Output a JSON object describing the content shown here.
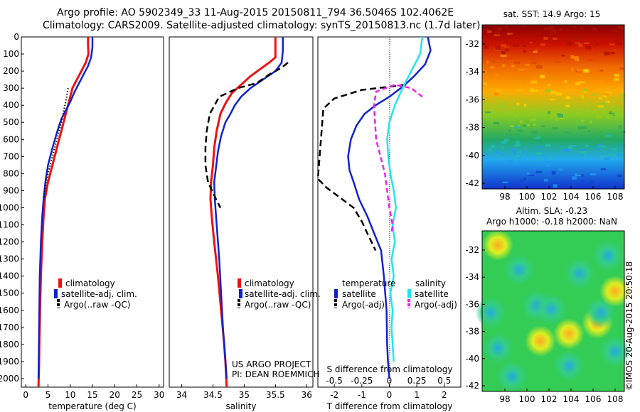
{
  "header": {
    "line1": "Argo profile: AO 5902349_33 11-Aug-2015 20150811_794 36.5046S 102.4062E",
    "line2": "Climatology: CARS2009. Satellite-adjusted climatology: synTS_20150813.nc (1.7d later)"
  },
  "colors": {
    "climatology": "#ee1111",
    "satellite": "#1122cc",
    "argo": "#000000",
    "satellite_salinity": "#22e5ee",
    "argo_adj_salinity": "#ee22ee"
  },
  "project": {
    "line1": "US ARGO PROJECT",
    "line2": "PI: DEAN ROEMMICH"
  },
  "imos_label": "©IMOS 20-Aug-2015 20:50:18",
  "maps": {
    "sst": {
      "title": "sat. SST: 14.9 Argo: 15",
      "colormap": "jet",
      "xticks": [
        "98",
        "100",
        "102",
        "104",
        "106",
        "108"
      ],
      "yticks": [
        "-32",
        "-34",
        "-36",
        "-38",
        "-40",
        "-42"
      ]
    },
    "sla": {
      "title1": "Altim. SLA: -0.23",
      "title2": "Argo h1000: -0.18 h2000: NaN",
      "colormap": "jet",
      "xticks": [
        "98",
        "100",
        "102",
        "104",
        "106",
        "108"
      ],
      "yticks": [
        "-32",
        "-34",
        "-36",
        "-38",
        "-40",
        "-42"
      ]
    }
  },
  "chart_data": [
    {
      "type": "line",
      "xlabel": "temperature (deg C)",
      "ylabel": "",
      "xlim": [
        -1,
        31
      ],
      "ylim": [
        2050,
        0
      ],
      "xticks": [
        "0",
        "5",
        "10",
        "15",
        "20",
        "25",
        "30"
      ],
      "yticks": [
        "0",
        "100",
        "200",
        "300",
        "400",
        "500",
        "600",
        "700",
        "800",
        "900",
        "1000",
        "1100",
        "1200",
        "1300",
        "1400",
        "1500",
        "1600",
        "1700",
        "1800",
        "1900",
        "2000"
      ],
      "legend": [
        "climatology",
        "satellite-adj. clim.",
        "Argo(..raw -QC)"
      ],
      "legend_position": "lower-center",
      "series": [
        {
          "name": "climatology",
          "style": "red",
          "x": [
            14,
            14,
            14.1,
            13.5,
            12.5,
            11.5,
            10.5,
            10,
            9.5,
            9,
            8,
            7,
            6,
            5,
            4.3,
            4,
            3.7,
            3.4,
            3.2,
            3.05,
            3,
            2.9,
            2.85
          ],
          "y": [
            0,
            50,
            100,
            150,
            200,
            250,
            300,
            350,
            400,
            450,
            550,
            650,
            750,
            850,
            950,
            1050,
            1200,
            1400,
            1600,
            1800,
            1900,
            2000,
            2050
          ]
        },
        {
          "name": "satellite-adj. clim.",
          "style": "blue",
          "x": [
            15,
            15,
            14.7,
            14,
            13,
            12,
            11,
            10,
            9,
            8,
            7,
            6,
            5,
            4.4,
            4,
            3.7,
            3.4,
            3.15,
            3.05,
            2.95,
            2.85
          ],
          "y": [
            0,
            60,
            120,
            170,
            220,
            270,
            320,
            380,
            430,
            480,
            560,
            650,
            750,
            850,
            950,
            1050,
            1200,
            1400,
            1600,
            1800,
            2000
          ]
        },
        {
          "name": "Argo(..raw -QC)",
          "style": "black-dotted",
          "x": [
            9.5,
            9.2,
            8.8,
            8.4,
            8,
            7.5,
            7,
            6.5,
            6,
            5.5,
            5,
            4.6,
            4.3,
            4
          ],
          "y": [
            300,
            350,
            400,
            450,
            500,
            550,
            600,
            650,
            700,
            750,
            800,
            850,
            900,
            950
          ]
        }
      ]
    },
    {
      "type": "line",
      "xlabel": "salinity",
      "ylabel": "",
      "xlim": [
        33.8,
        36.1
      ],
      "ylim": [
        2050,
        0
      ],
      "xticks": [
        "34",
        "34.5",
        "35",
        "35.5",
        "36"
      ],
      "legend": [
        "climatology",
        "satellite-adj. clim.",
        "Argo(..raw -QC)"
      ],
      "legend_position": "lower-center",
      "series": [
        {
          "name": "climatology",
          "style": "red",
          "x": [
            35.5,
            35.5,
            35.5,
            35.4,
            35.25,
            35.1,
            34.95,
            34.8,
            34.7,
            34.62,
            34.56,
            34.52,
            34.5,
            34.47,
            34.46,
            34.48,
            34.52,
            34.58,
            34.63,
            34.68,
            34.7,
            34.72
          ],
          "y": [
            0,
            60,
            120,
            150,
            190,
            230,
            280,
            330,
            390,
            450,
            550,
            650,
            750,
            850,
            950,
            1050,
            1200,
            1400,
            1600,
            1800,
            1900,
            2050
          ]
        },
        {
          "name": "satellite-adj. clim.",
          "style": "blue",
          "x": [
            35.62,
            35.62,
            35.6,
            35.5,
            35.3,
            35.1,
            34.95,
            34.85,
            34.78,
            34.7,
            34.63,
            34.58,
            34.55,
            34.52,
            34.53,
            34.56,
            34.6,
            34.63,
            34.66,
            34.7,
            34.72
          ],
          "y": [
            0,
            80,
            150,
            200,
            250,
            300,
            350,
            400,
            450,
            500,
            580,
            670,
            760,
            850,
            950,
            1100,
            1300,
            1500,
            1700,
            1900,
            2000
          ]
        },
        {
          "name": "Argo(..raw -QC)",
          "style": "black-dashed",
          "x": [
            35.7,
            35.6,
            35.4,
            35.2,
            34.9,
            34.6,
            34.45,
            34.4,
            34.38,
            34.38,
            34.42,
            34.55,
            34.62
          ],
          "y": [
            150,
            180,
            220,
            270,
            300,
            350,
            450,
            550,
            650,
            750,
            850,
            950,
            1000
          ]
        }
      ]
    },
    {
      "type": "line",
      "xlabel": "T difference from climatology",
      "ylabel": "",
      "xlim": [
        -2.6,
        2.6
      ],
      "ylim": [
        2050,
        0
      ],
      "xticks": [
        "-2",
        "-1",
        "0",
        "1",
        "2"
      ],
      "secondary_xlabel": "S difference from climatology",
      "secondary_xticks": [
        "-0.5",
        "-0.25",
        "0",
        "0.25",
        "0.5"
      ],
      "secondary_xlim": [
        -0.65,
        0.65
      ],
      "legend_groups": [
        "temperature",
        "salinity"
      ],
      "legend": [
        "satellite",
        "Argo(-adj)",
        "satellite",
        "Argo(-adj)"
      ],
      "legend_position": "lower-center",
      "series": [
        {
          "name": "satellite",
          "group": "temperature",
          "style": "blue",
          "x": [
            1.4,
            1.5,
            1.3,
            0.9,
            0.5,
            0,
            -0.5,
            -0.9,
            -1.2,
            -1.4,
            -1.5,
            -1.45,
            -1.3,
            -1.1,
            -0.8,
            -0.55,
            -0.3,
            -0.2,
            -0.1,
            -0.08,
            -0.05,
            0
          ],
          "y": [
            0,
            80,
            160,
            230,
            290,
            350,
            400,
            450,
            520,
            600,
            700,
            780,
            850,
            950,
            1050,
            1150,
            1250,
            1400,
            1600,
            1800,
            1900,
            2000
          ]
        },
        {
          "name": "Argo(-adj)",
          "group": "temperature",
          "style": "black-dashed",
          "x": [
            0.6,
            -1,
            -2,
            -2.4,
            -2.6,
            -2.3,
            -1.8,
            -1.3,
            -1,
            -0.8,
            -0.5
          ],
          "y": [
            280,
            310,
            360,
            420,
            830,
            880,
            940,
            1000,
            1080,
            1150,
            1250
          ]
        },
        {
          "name": "satellite",
          "group": "salinity",
          "style": "cyan",
          "x": [
            0.3,
            0.28,
            0.2,
            0.12,
            0.05,
            0,
            -0.02,
            -0.01,
            0.01,
            0.04,
            0.06,
            0.03,
            0.05,
            0.02,
            0.04,
            0.01,
            0.03,
            0.02,
            0.03,
            0.04
          ],
          "y": [
            0,
            100,
            200,
            300,
            400,
            500,
            600,
            700,
            800,
            900,
            1000,
            1100,
            1200,
            1300,
            1400,
            1500,
            1600,
            1700,
            1800,
            1900
          ]
        },
        {
          "name": "Argo(-adj)",
          "group": "salinity",
          "style": "magenta-dashed",
          "x": [
            0.3,
            0.2,
            0.05,
            -0.12,
            -0.14,
            -0.12,
            -0.08,
            -0.04,
            -0.02,
            0,
            0.03,
            0.02
          ],
          "y": [
            350,
            300,
            280,
            320,
            400,
            600,
            700,
            800,
            900,
            1000,
            1100,
            1150
          ]
        }
      ]
    }
  ]
}
